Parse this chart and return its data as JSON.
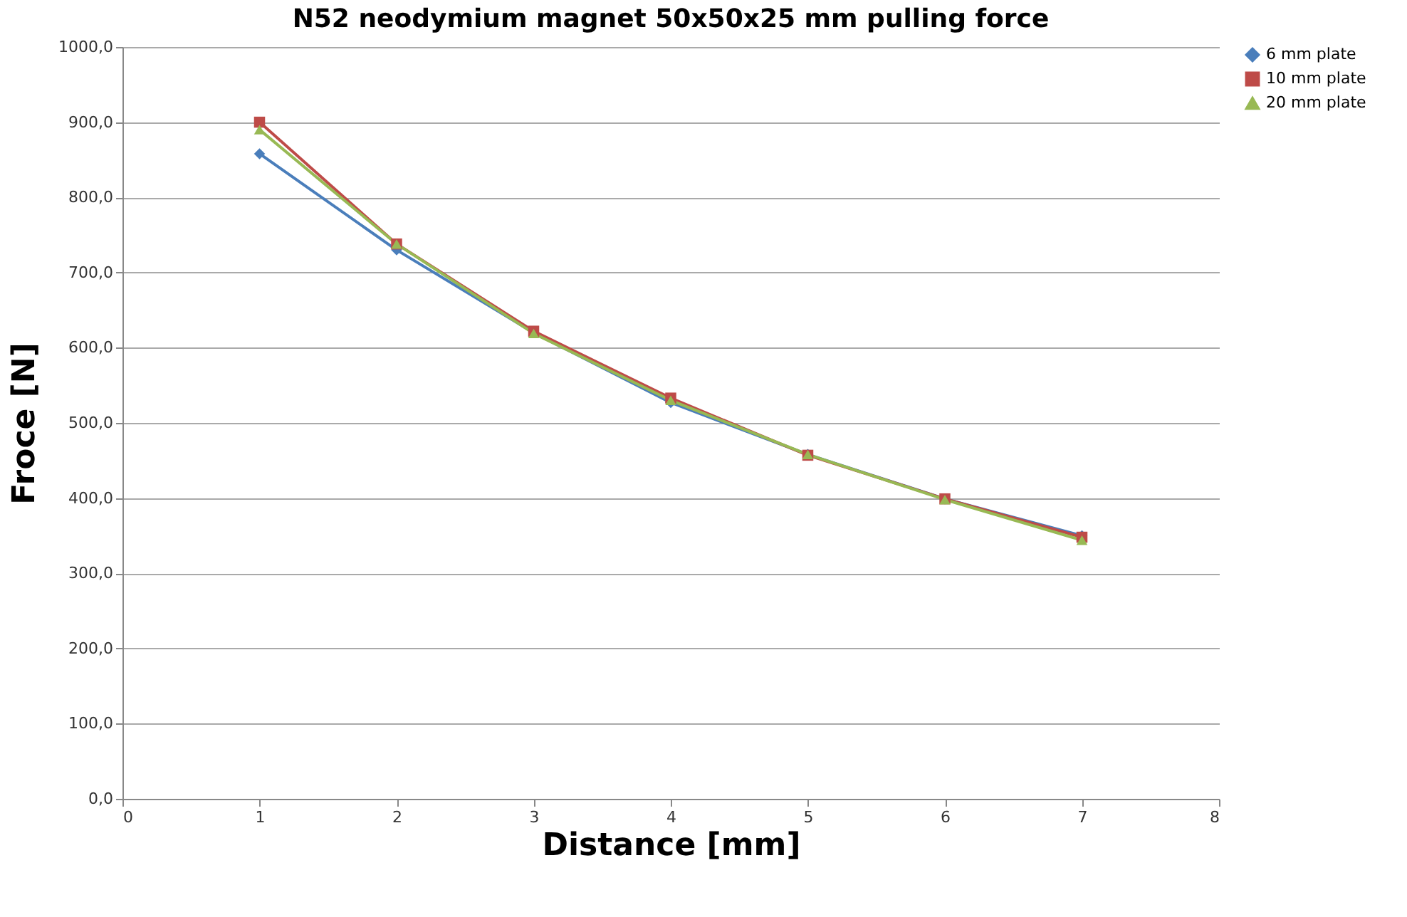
{
  "chart_data": {
    "type": "line",
    "title": "N52 neodymium magnet 50x50x25 mm pulling force",
    "xlabel": "Distance [mm]",
    "ylabel": "Froce [N]",
    "x": [
      1,
      2,
      3,
      4,
      5,
      6,
      7
    ],
    "series": [
      {
        "name": "6 mm plate",
        "color": "#4a7ebb",
        "marker": "diamond",
        "values": [
          858,
          730,
          620,
          527,
          458,
          399,
          350
        ]
      },
      {
        "name": "10 mm plate",
        "color": "#be4b48",
        "marker": "square",
        "values": [
          900,
          738,
          622,
          533,
          457,
          399,
          348
        ]
      },
      {
        "name": "20 mm plate",
        "color": "#98b954",
        "marker": "triangle",
        "values": [
          890,
          738,
          619,
          530,
          458,
          398,
          344
        ]
      }
    ],
    "xlim": [
      0,
      8
    ],
    "xticks": [
      0,
      1,
      2,
      3,
      4,
      5,
      6,
      7,
      8
    ],
    "ylim": [
      0,
      1000
    ],
    "yticks": [
      {
        "value": 0,
        "label": "0,0"
      },
      {
        "value": 100,
        "label": "100,0"
      },
      {
        "value": 200,
        "label": "200,0"
      },
      {
        "value": 300,
        "label": "300,0"
      },
      {
        "value": 400,
        "label": "400,0"
      },
      {
        "value": 500,
        "label": "500,0"
      },
      {
        "value": 600,
        "label": "600,0"
      },
      {
        "value": 700,
        "label": "700,0"
      },
      {
        "value": 800,
        "label": "800,0"
      },
      {
        "value": 900,
        "label": "900,0"
      },
      {
        "value": 1000,
        "label": "1000,0"
      }
    ],
    "grid": "y",
    "legend": "right",
    "line_style": "solid"
  }
}
